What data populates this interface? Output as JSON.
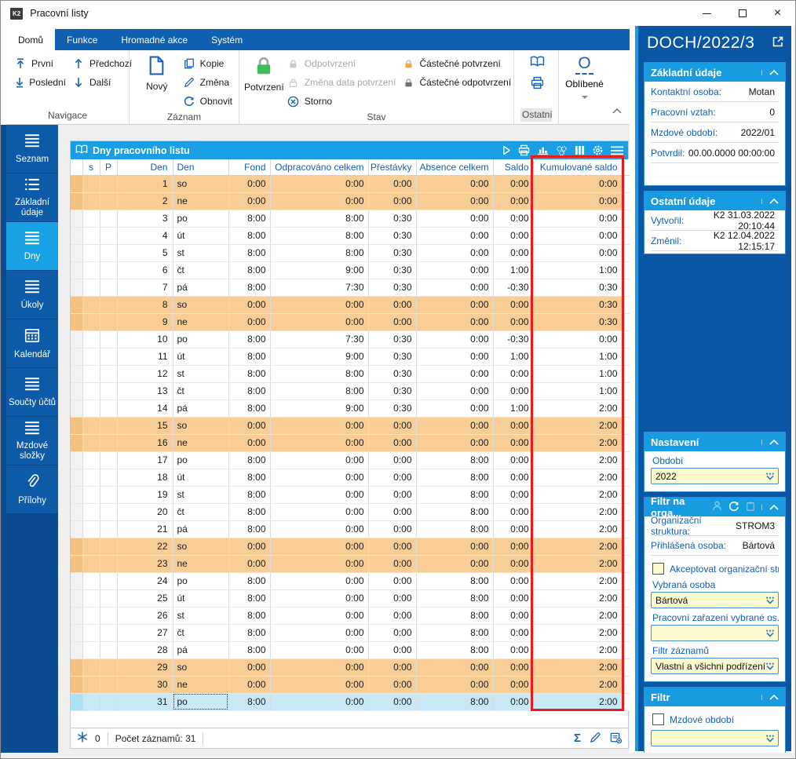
{
  "window": {
    "title": "Pracovní listy",
    "logo": "K2"
  },
  "tabs": [
    {
      "label": "Domů",
      "active": true
    },
    {
      "label": "Funkce",
      "active": false
    },
    {
      "label": "Hromadné akce",
      "active": false
    },
    {
      "label": "Systém",
      "active": false
    }
  ],
  "ribbon": {
    "navigace": {
      "label": "Navigace",
      "prvni": "První",
      "posledni": "Poslední",
      "predchozi": "Předchozí",
      "dalsi": "Další"
    },
    "zaznam": {
      "label": "Záznam",
      "novy": "Nový",
      "kopie": "Kopie",
      "zmena": "Změna",
      "obnovit": "Obnovit"
    },
    "stav": {
      "label": "Stav",
      "potvrzeni": "Potvrzení",
      "odpotvrzeni": "Odpotvrzení",
      "zmena_data": "Změna data potvrzení",
      "storno": "Storno",
      "castecne_potvrzeni": "Částečné potvrzení",
      "castecne_odpotvrzeni": "Částečné odpotvrzení"
    },
    "ostatni": {
      "label": "Ostatní"
    },
    "oblibene": {
      "label": "Oblíbené"
    }
  },
  "sidebar": {
    "items": [
      {
        "label": "Seznam",
        "icon": "menu-icon",
        "active": false
      },
      {
        "label": "Základní údaje",
        "icon": "list-details-icon",
        "active": false
      },
      {
        "label": "Dny",
        "icon": "menu-icon",
        "active": true
      },
      {
        "label": "Úkoly",
        "icon": "menu-icon",
        "active": false
      },
      {
        "label": "Kalendář",
        "icon": "calendar-icon",
        "active": false
      },
      {
        "label": "Součty účtů",
        "icon": "menu-icon",
        "active": false
      },
      {
        "label": "Mzdové složky",
        "icon": "menu-icon",
        "active": false
      },
      {
        "label": "Přílohy",
        "icon": "paperclip-icon",
        "active": false
      }
    ]
  },
  "grid": {
    "title": "Dny pracovního listu",
    "toolbar_icons": [
      "play-icon",
      "print-icon",
      "chart-icon",
      "process-icon",
      "columns-icon",
      "settings-icon",
      "menu-icon"
    ],
    "columns": [
      "",
      "s",
      "P",
      "Den",
      "Den",
      "Fond",
      "Odpracováno celkem",
      "Přestávky",
      "Absence celkem",
      "Saldo",
      "Kumulované saldo"
    ],
    "highlighted_column": "Kumulované saldo",
    "selected_row": 31,
    "rows": [
      [
        "1",
        "so",
        "0:00",
        "0:00",
        "0:00",
        "0:00",
        "0:00",
        "0:00"
      ],
      [
        "2",
        "ne",
        "0:00",
        "0:00",
        "0:00",
        "0:00",
        "0:00",
        "0:00"
      ],
      [
        "3",
        "po",
        "8:00",
        "8:00",
        "0:30",
        "0:00",
        "0:00",
        "0:00"
      ],
      [
        "4",
        "út",
        "8:00",
        "8:00",
        "0:30",
        "0:00",
        "0:00",
        "0:00"
      ],
      [
        "5",
        "st",
        "8:00",
        "8:00",
        "0:30",
        "0:00",
        "0:00",
        "0:00"
      ],
      [
        "6",
        "čt",
        "8:00",
        "9:00",
        "0:30",
        "0:00",
        "1:00",
        "1:00"
      ],
      [
        "7",
        "pá",
        "8:00",
        "7:30",
        "0:30",
        "0:00",
        "-0:30",
        "0:30"
      ],
      [
        "8",
        "so",
        "0:00",
        "0:00",
        "0:00",
        "0:00",
        "0:00",
        "0:30"
      ],
      [
        "9",
        "ne",
        "0:00",
        "0:00",
        "0:00",
        "0:00",
        "0:00",
        "0:30"
      ],
      [
        "10",
        "po",
        "8:00",
        "7:30",
        "0:30",
        "0:00",
        "-0:30",
        "0:00"
      ],
      [
        "11",
        "út",
        "8:00",
        "9:00",
        "0:30",
        "0:00",
        "1:00",
        "1:00"
      ],
      [
        "12",
        "st",
        "8:00",
        "8:00",
        "0:30",
        "0:00",
        "0:00",
        "1:00"
      ],
      [
        "13",
        "čt",
        "8:00",
        "8:00",
        "0:30",
        "0:00",
        "0:00",
        "1:00"
      ],
      [
        "14",
        "pá",
        "8:00",
        "9:00",
        "0:30",
        "0:00",
        "1:00",
        "2:00"
      ],
      [
        "15",
        "so",
        "0:00",
        "0:00",
        "0:00",
        "0:00",
        "0:00",
        "2:00"
      ],
      [
        "16",
        "ne",
        "0:00",
        "0:00",
        "0:00",
        "0:00",
        "0:00",
        "2:00"
      ],
      [
        "17",
        "po",
        "8:00",
        "0:00",
        "0:00",
        "8:00",
        "0:00",
        "2:00"
      ],
      [
        "18",
        "út",
        "8:00",
        "0:00",
        "0:00",
        "8:00",
        "0:00",
        "2:00"
      ],
      [
        "19",
        "st",
        "8:00",
        "0:00",
        "0:00",
        "8:00",
        "0:00",
        "2:00"
      ],
      [
        "20",
        "čt",
        "8:00",
        "0:00",
        "0:00",
        "8:00",
        "0:00",
        "2:00"
      ],
      [
        "21",
        "pá",
        "8:00",
        "0:00",
        "0:00",
        "8:00",
        "0:00",
        "2:00"
      ],
      [
        "22",
        "so",
        "0:00",
        "0:00",
        "0:00",
        "0:00",
        "0:00",
        "2:00"
      ],
      [
        "23",
        "ne",
        "0:00",
        "0:00",
        "0:00",
        "0:00",
        "0:00",
        "2:00"
      ],
      [
        "24",
        "po",
        "8:00",
        "0:00",
        "0:00",
        "8:00",
        "0:00",
        "2:00"
      ],
      [
        "25",
        "út",
        "8:00",
        "0:00",
        "0:00",
        "8:00",
        "0:00",
        "2:00"
      ],
      [
        "26",
        "st",
        "8:00",
        "0:00",
        "0:00",
        "8:00",
        "0:00",
        "2:00"
      ],
      [
        "27",
        "čt",
        "8:00",
        "0:00",
        "0:00",
        "8:00",
        "0:00",
        "2:00"
      ],
      [
        "28",
        "pá",
        "8:00",
        "0:00",
        "0:00",
        "8:00",
        "0:00",
        "2:00"
      ],
      [
        "29",
        "so",
        "0:00",
        "0:00",
        "0:00",
        "0:00",
        "0:00",
        "2:00"
      ],
      [
        "30",
        "ne",
        "0:00",
        "0:00",
        "0:00",
        "0:00",
        "0:00",
        "2:00"
      ],
      [
        "31",
        "po",
        "8:00",
        "0:00",
        "0:00",
        "8:00",
        "0:00",
        "2:00"
      ]
    ],
    "footer": {
      "pin_count": "0",
      "record_count": "Počet záznamů: 31",
      "right_icons": [
        "sum-icon",
        "edit-icon",
        "notes-icon"
      ]
    }
  },
  "right_panel": {
    "title": "DOCH/2022/3",
    "zakladni_udaje": {
      "title": "Základní údaje",
      "rows": [
        {
          "label": "Kontaktní osoba:",
          "value": "Motan"
        },
        {
          "label": "Pracovní vztah:",
          "value": "0"
        },
        {
          "label": "Mzdové období:",
          "value": "2022/01"
        },
        {
          "label": "Potvrdil:",
          "value": "00.00.0000 00:00:00"
        }
      ]
    },
    "ostatni_udaje": {
      "title": "Ostatní údaje",
      "rows": [
        {
          "label": "Vytvořil:",
          "value": "K2 31.03.2022 20:10:44"
        },
        {
          "label": "Změnil:",
          "value": "K2 12.04.2022 12:15:17"
        }
      ]
    },
    "nastaveni": {
      "title": "Nastavení",
      "obdobi_label": "Období",
      "obdobi_value": "2022"
    },
    "filtr_org": {
      "title": "Filtr na orga...",
      "rows": [
        {
          "label": "Organizační struktura:",
          "value": "STROM3"
        },
        {
          "label": "Přihlášená osoba:",
          "value": "Bártová"
        }
      ],
      "checkbox_label": "Akceptovat organizační str...",
      "vybrana_osoba_label": "Vybraná osoba",
      "vybrana_osoba_value": "Bártová",
      "zarazeni_label": "Pracovní zařazení vybrané os...",
      "zarazeni_value": "",
      "filtr_zaznamu_label": "Filtr záznamů",
      "filtr_zaznamu_value": "Vlastní a všichni podřízení"
    },
    "filtr": {
      "title": "Filtr",
      "checkbox_label": "Mzdové období",
      "value": ""
    }
  },
  "colors": {
    "accent_blue": "#1060B2",
    "bright_blue": "#189CE1",
    "dark_blue": "#0B56A4",
    "weekend_row": "#F8CE96",
    "selected_row": "#C9E9F8",
    "field_yellow": "#FDFACF",
    "highlight_red": "#E81C1C",
    "confirm_green": "#3FBF5C",
    "partial_orange": "#F5A83C"
  }
}
